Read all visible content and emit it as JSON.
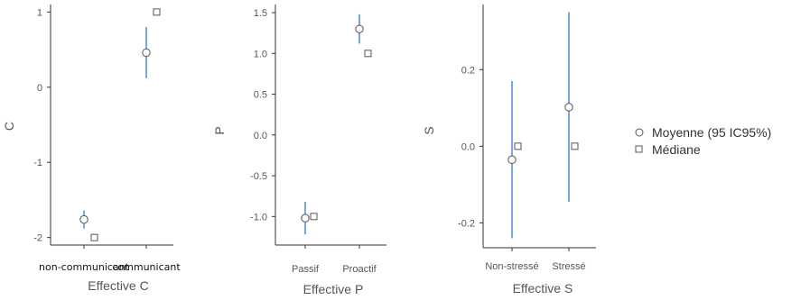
{
  "chart_data": [
    {
      "type": "scatter",
      "xlabel": "Effective C",
      "ylabel": "C",
      "categories": [
        "non-communicant",
        "communicant"
      ],
      "ylim": [
        -2.1,
        1.1
      ],
      "yticks": [
        "1",
        "0",
        "-1",
        "-2"
      ],
      "series": [
        {
          "name": "Moyenne (95 IC95%)",
          "values": [
            -1.76,
            0.46
          ],
          "ci_low": [
            -1.88,
            0.12
          ],
          "ci_high": [
            -1.64,
            0.8
          ]
        },
        {
          "name": "Médiane",
          "values": [
            -2,
            1
          ]
        }
      ]
    },
    {
      "type": "scatter",
      "xlabel": "Effective P",
      "ylabel": "P",
      "categories": [
        "Passif",
        "Proactif"
      ],
      "ylim": [
        -1.35,
        1.6
      ],
      "yticks": [
        "1.5",
        "1.0",
        "0.5",
        "0.0",
        "-0.5",
        "-1.0"
      ],
      "series": [
        {
          "name": "Moyenne (95 IC95%)",
          "values": [
            -1.02,
            1.3
          ],
          "ci_low": [
            -1.22,
            1.12
          ],
          "ci_high": [
            -0.82,
            1.48
          ]
        },
        {
          "name": "Médiane",
          "values": [
            -1,
            1
          ]
        }
      ]
    },
    {
      "type": "scatter",
      "xlabel": "Effective S",
      "ylabel": "S",
      "categories": [
        "Non-stressé",
        "Stressé"
      ],
      "ylim": [
        -0.265,
        0.37
      ],
      "yticks": [
        "0.2",
        "0.0",
        "-0.2"
      ],
      "series": [
        {
          "name": "Moyenne (95 IC95%)",
          "values": [
            -0.035,
            0.102
          ],
          "ci_low": [
            -0.24,
            -0.145
          ],
          "ci_high": [
            0.17,
            0.35
          ]
        },
        {
          "name": "Médiane",
          "values": [
            0,
            0
          ]
        }
      ]
    }
  ],
  "legend": {
    "mean_label": "Moyenne (95 IC95%)",
    "median_label": "Médiane"
  },
  "colors": {
    "ci_line": "#7aa6e6",
    "marker_stroke": "#555555",
    "axis": "#333333"
  }
}
